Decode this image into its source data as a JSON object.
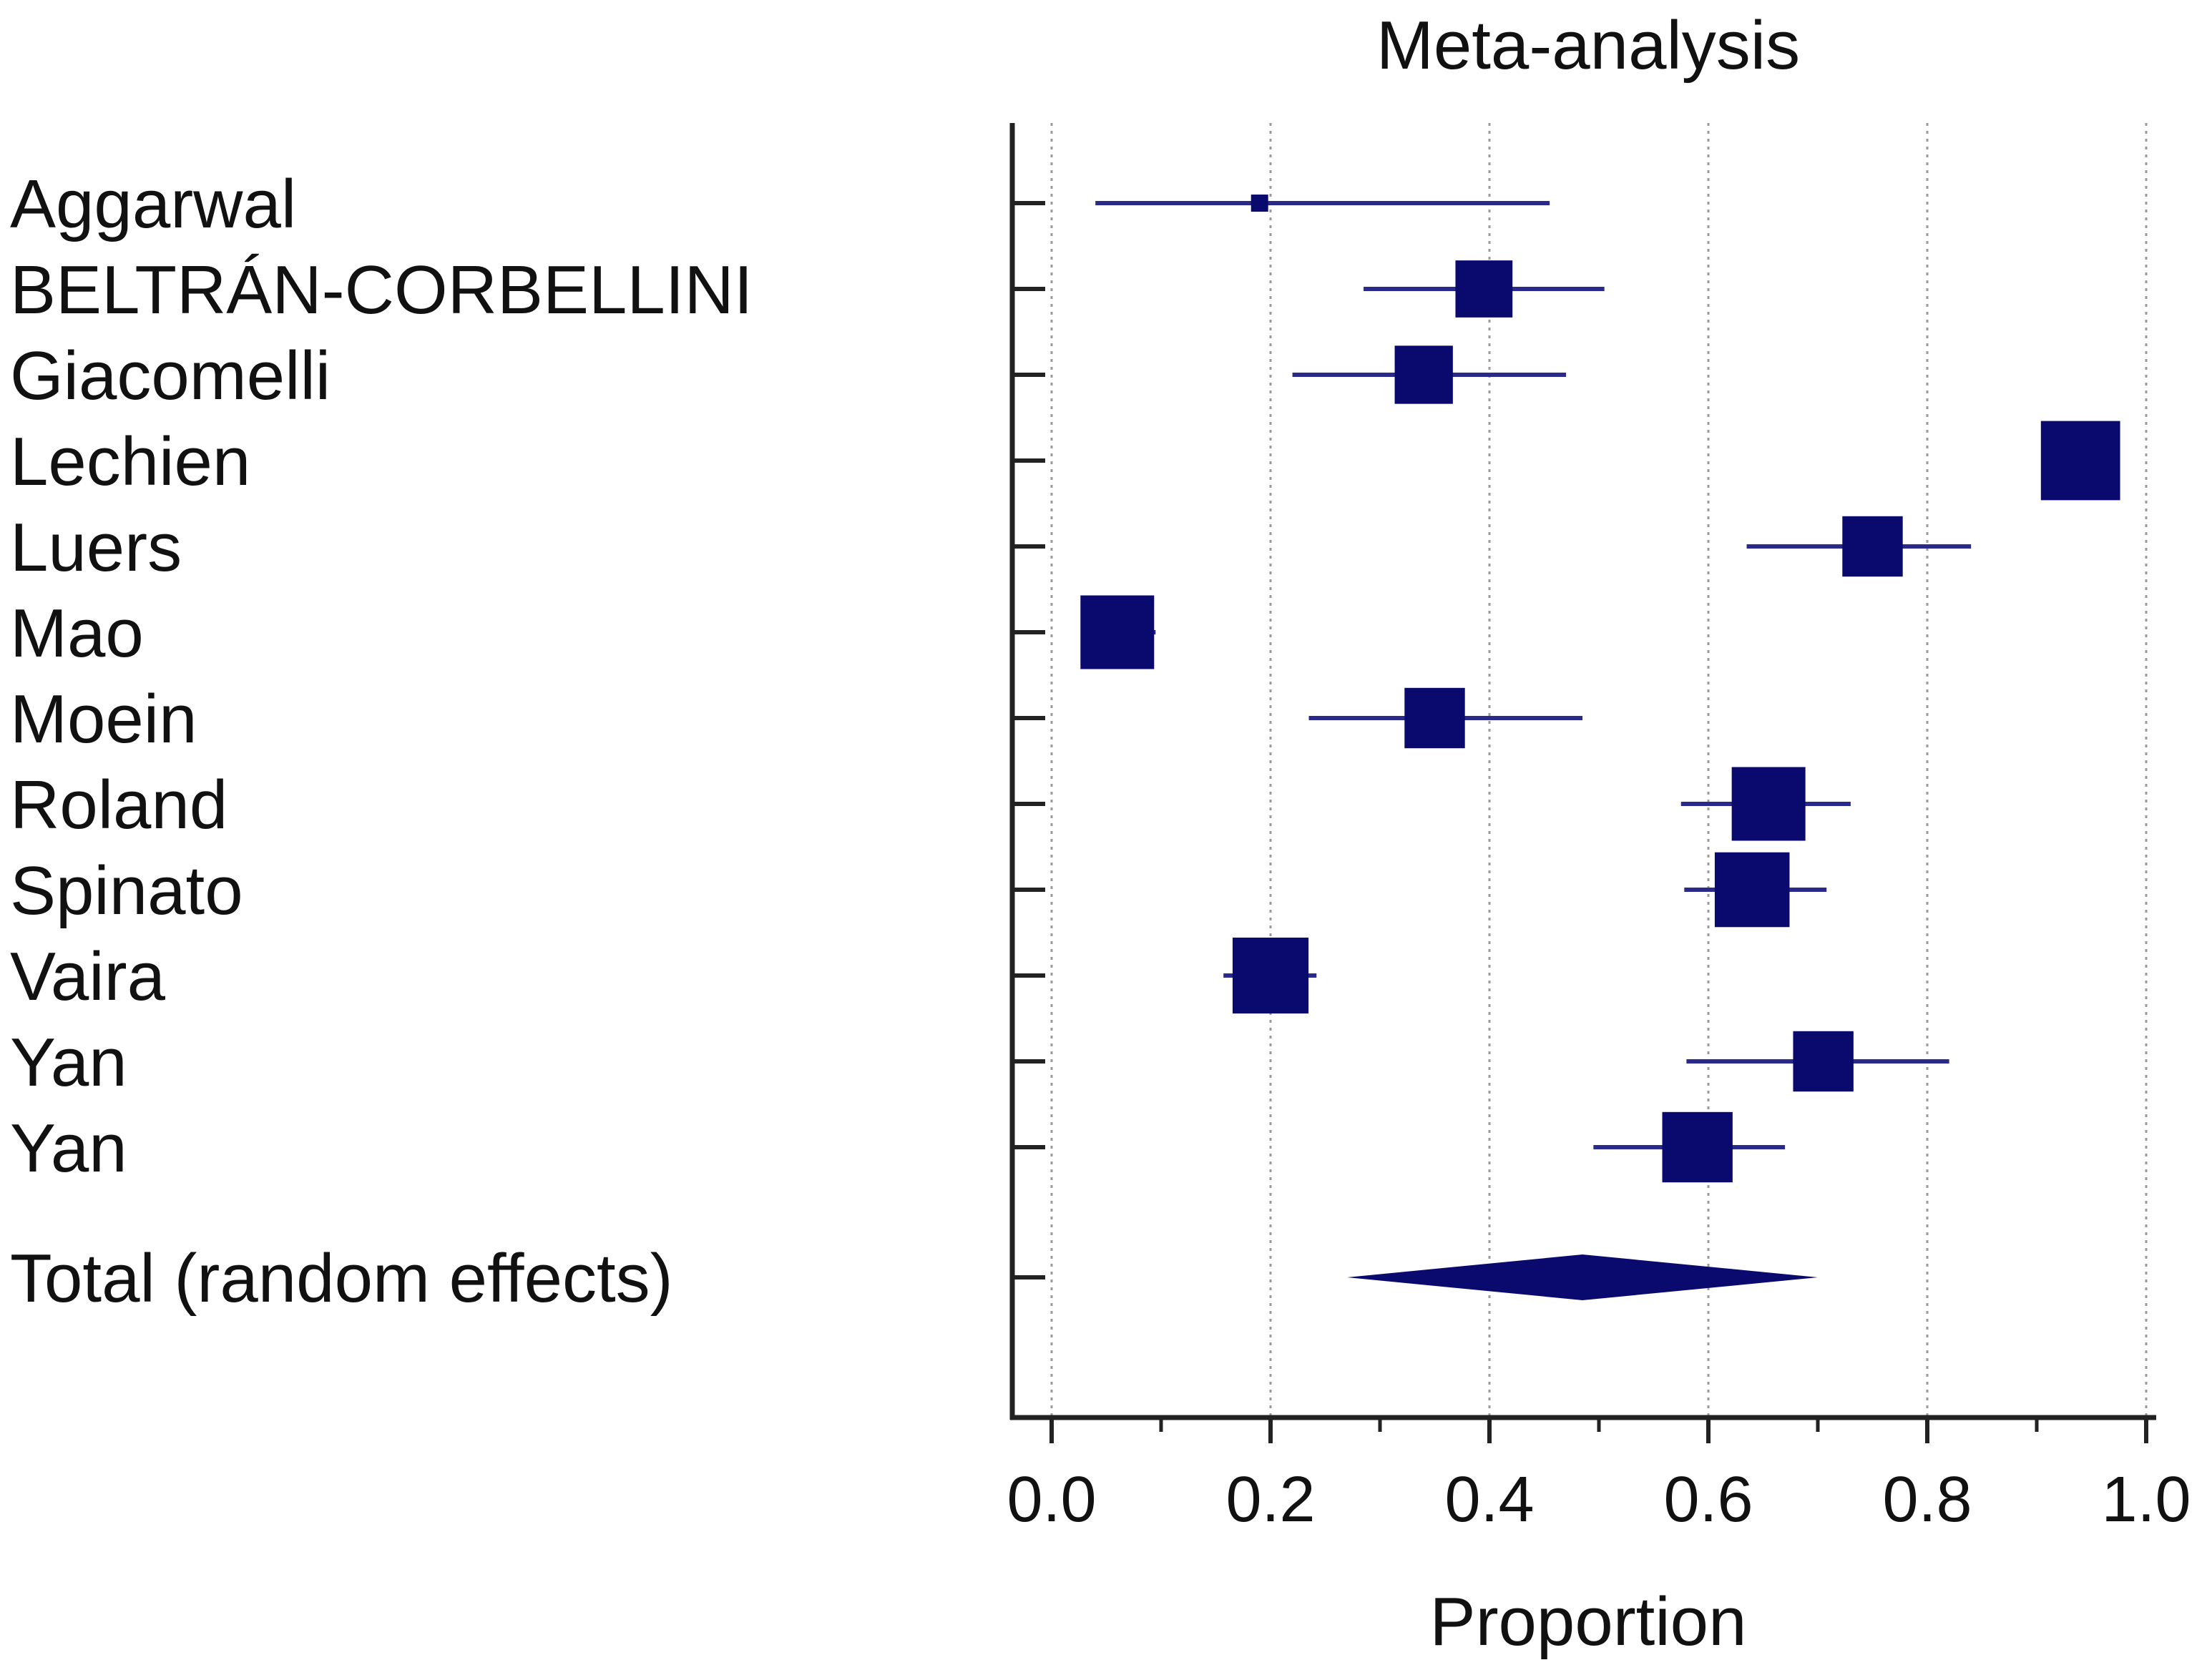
{
  "chart_data": {
    "type": "forest",
    "title": "Meta-analysis",
    "xlabel": "Proportion",
    "xlim": [
      0.0,
      1.0
    ],
    "xticks": [
      "0.0",
      "0.2",
      "0.4",
      "0.6",
      "0.8",
      "1.0"
    ],
    "xtick_values": [
      0.0,
      0.2,
      0.4,
      0.6,
      0.8,
      1.0
    ],
    "grid": true,
    "colors": {
      "marker": "#0a0a6e",
      "ci_line": "#2a2a8c",
      "axis": "#222222",
      "grid": "#9a9a9a"
    },
    "studies": [
      {
        "label": "Aggarwal",
        "estimate": 0.19,
        "ci_low": 0.04,
        "ci_high": 0.455,
        "weight": 0.9
      },
      {
        "label": "BELTRÁN-CORBELLINI",
        "estimate": 0.395,
        "ci_low": 0.285,
        "ci_high": 0.505,
        "weight": 4.5
      },
      {
        "label": "Giacomelli",
        "estimate": 0.34,
        "ci_low": 0.22,
        "ci_high": 0.47,
        "weight": 4.6
      },
      {
        "label": "Lechien",
        "estimate": 0.94,
        "ci_low": 0.92,
        "ci_high": 0.96,
        "weight": 6.5
      },
      {
        "label": "Luers",
        "estimate": 0.75,
        "ci_low": 0.635,
        "ci_high": 0.84,
        "weight": 4.8
      },
      {
        "label": "Mao",
        "estimate": 0.06,
        "ci_low": 0.035,
        "ci_high": 0.095,
        "weight": 6.0
      },
      {
        "label": "Moein",
        "estimate": 0.35,
        "ci_low": 0.235,
        "ci_high": 0.485,
        "weight": 4.8
      },
      {
        "label": "Roland",
        "estimate": 0.655,
        "ci_low": 0.575,
        "ci_high": 0.73,
        "weight": 6.0
      },
      {
        "label": "Spinato",
        "estimate": 0.64,
        "ci_low": 0.578,
        "ci_high": 0.708,
        "weight": 6.1
      },
      {
        "label": "Vaira",
        "estimate": 0.2,
        "ci_low": 0.157,
        "ci_high": 0.242,
        "weight": 6.2
      },
      {
        "label": "Yan",
        "estimate": 0.705,
        "ci_low": 0.58,
        "ci_high": 0.82,
        "weight": 4.8
      },
      {
        "label": "Yan",
        "estimate": 0.59,
        "ci_low": 0.495,
        "ci_high": 0.67,
        "weight": 5.7
      }
    ],
    "total": {
      "label": "Total (random effects)",
      "estimate": 0.485,
      "ci_low": 0.27,
      "ci_high": 0.7
    }
  }
}
